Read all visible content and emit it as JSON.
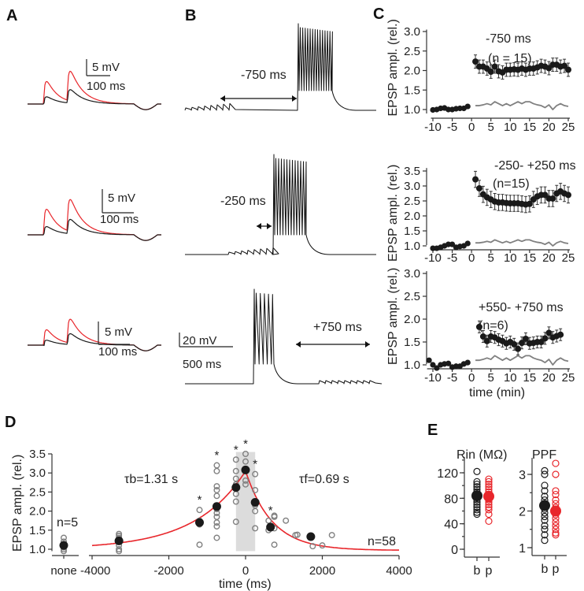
{
  "panel_labels": [
    "A",
    "B",
    "C",
    "D",
    "E"
  ],
  "colors": {
    "red": "#e8262b",
    "black": "#1a1a1a",
    "grey": "#808080",
    "shade": "#dcdcdc"
  },
  "panel_a": {
    "scale_mv": "5 mV",
    "scale_ms": "100 ms"
  },
  "panel_b": {
    "arrow_labels": [
      "-750 ms",
      "-250 ms",
      "+750 ms"
    ],
    "scale_mv": "20 mV",
    "scale_ms": "500 ms"
  },
  "chart_data": [
    {
      "type": "scatter",
      "panel": "C-top",
      "title": "-750 ms",
      "subtitle": "(n = 15)",
      "xlabel": "",
      "ylabel": "EPSP ampl. (rel.)",
      "xlim": [
        -10.5,
        25.5
      ],
      "ylim": [
        0.9,
        3.0
      ],
      "xticks": [
        "-10",
        "-5",
        "0",
        "5",
        "10",
        "15",
        "20",
        "25"
      ],
      "yticks": [
        "1.0",
        "1.5",
        "2.0",
        "2.5",
        "3.0"
      ],
      "pre": {
        "x": [
          -10,
          -9,
          -8,
          -7,
          -6,
          -5,
          -4,
          -3,
          -2,
          -1
        ],
        "y": [
          0.99,
          1.0,
          1.03,
          1.04,
          1.0,
          1.0,
          1.02,
          1.03,
          1.03,
          1.08
        ]
      },
      "post": {
        "x_start": 1,
        "y": [
          2.23,
          2.1,
          2.1,
          2.05,
          1.97,
          2.1,
          1.98,
          1.95,
          2.02,
          2.02,
          2.03,
          2.02,
          2.05,
          2.02,
          2.05,
          2.05,
          2.08,
          2.12,
          2.1,
          2.06,
          2.15,
          2.15,
          2.1,
          2.12,
          2.02
        ],
        "err": 0.17
      },
      "control": {
        "x_start": 1,
        "y": [
          1.1,
          1.1,
          1.12,
          1.15,
          1.12,
          1.2,
          1.15,
          1.1,
          1.15,
          1.1,
          1.15,
          1.2,
          1.15,
          1.2,
          1.2,
          1.15,
          1.12,
          1.1,
          1.05,
          1.12,
          1.0,
          1.1,
          1.15,
          1.1,
          1.08
        ]
      }
    },
    {
      "type": "scatter",
      "panel": "C-middle",
      "title": "-250- +250 ms",
      "subtitle": "(n=15)",
      "xlabel": "",
      "ylabel": "EPSP ampl. (rel.)",
      "xlim": [
        -10.5,
        25.5
      ],
      "ylim": [
        0.9,
        3.7
      ],
      "xticks": [
        "-10",
        "-5",
        "0",
        "5",
        "10",
        "15",
        "20",
        "25"
      ],
      "yticks": [
        "1.0",
        "1.5",
        "2.0",
        "2.5",
        "3.0",
        "3.5"
      ],
      "pre": {
        "x": [
          -10,
          -9,
          -8,
          -7,
          -6,
          -5,
          -4,
          -3,
          -2,
          -1
        ],
        "y": [
          0.92,
          0.92,
          0.95,
          1.0,
          1.05,
          1.05,
          0.95,
          0.98,
          1.0,
          1.08
        ]
      },
      "post": {
        "x_start": 1,
        "y": [
          3.22,
          2.92,
          2.72,
          2.62,
          2.55,
          2.48,
          2.45,
          2.45,
          2.43,
          2.42,
          2.42,
          2.42,
          2.4,
          2.38,
          2.4,
          2.55,
          2.65,
          2.7,
          2.7,
          2.58,
          2.58,
          2.75,
          2.82,
          2.75,
          2.7
        ],
        "err": 0.27
      },
      "control": {
        "x_start": 1,
        "y": [
          1.1,
          1.1,
          1.12,
          1.15,
          1.12,
          1.2,
          1.15,
          1.1,
          1.15,
          1.1,
          1.15,
          1.2,
          1.15,
          1.2,
          1.2,
          1.15,
          1.12,
          1.1,
          1.05,
          1.12,
          1.0,
          1.1,
          1.15,
          1.1,
          1.08
        ]
      }
    },
    {
      "type": "scatter",
      "panel": "C-bottom",
      "title": "+550- +750 ms",
      "subtitle": "(n=6)",
      "xlabel": "time (min)",
      "ylabel": "EPSP ampl. (rel.)",
      "xlim": [
        -11.5,
        25.5
      ],
      "ylim": [
        0.9,
        3.0
      ],
      "xticks": [
        "-10",
        "-5",
        "0",
        "5",
        "10",
        "15",
        "20",
        "25"
      ],
      "yticks": [
        "1.0",
        "1.5",
        "2.0",
        "2.5",
        "3.0"
      ],
      "pre": {
        "x": [
          -11,
          -10,
          -9,
          -8,
          -7,
          -6,
          -5,
          -4,
          -3,
          -2,
          -1
        ],
        "y": [
          1.1,
          1.0,
          0.93,
          1.0,
          1.02,
          1.03,
          0.95,
          0.97,
          0.97,
          1.02,
          1.05
        ]
      },
      "post": {
        "x_start": 2,
        "y": [
          1.83,
          1.62,
          1.52,
          1.62,
          1.6,
          1.55,
          1.52,
          1.47,
          1.5,
          1.45,
          1.35,
          1.48,
          1.57,
          1.47,
          1.48,
          1.5,
          1.5,
          1.58,
          1.7,
          1.6,
          1.63,
          1.66
        ],
        "err": 0.13
      },
      "control": {
        "x_start": 1,
        "y": [
          1.1,
          1.1,
          1.12,
          1.15,
          1.12,
          1.2,
          1.15,
          1.1,
          1.15,
          1.1,
          1.15,
          1.2,
          1.15,
          1.2,
          1.2,
          1.15,
          1.12,
          1.1,
          1.05,
          1.12,
          1.0,
          1.1,
          1.15,
          1.1,
          1.08
        ]
      }
    },
    {
      "type": "scatter",
      "panel": "D",
      "xlabel": "time (ms)",
      "ylabel": "EPSP ampl. (rel.)",
      "xlim": [
        -4000,
        4000
      ],
      "ylim": [
        0.95,
        3.5
      ],
      "xticks": [
        "-4000",
        "-2000",
        "0",
        "2000",
        "4000"
      ],
      "yticks": [
        "1.0",
        "1.5",
        "2.0",
        "2.5",
        "3.0",
        "3.5"
      ],
      "none_label": "none",
      "none_n": "n=5",
      "none_mean": 1.1,
      "none_points": [
        0.95,
        1.0,
        1.05,
        1.2,
        1.3
      ],
      "tau_b": "τb=1.31 s",
      "tau_f": "τf=0.69 s",
      "n_label": "n=58",
      "shaded_window": [
        -250,
        250
      ],
      "means": [
        [
          -3300,
          1.22
        ],
        [
          -1200,
          1.7
        ],
        [
          -750,
          2.12
        ],
        [
          -250,
          2.62
        ],
        [
          0,
          3.08
        ],
        [
          250,
          2.23
        ],
        [
          650,
          1.58
        ],
        [
          1700,
          1.33
        ]
      ],
      "significant": [
        -1200,
        -750,
        -250,
        0,
        250,
        650
      ],
      "points": [
        [
          -3300,
          0.95
        ],
        [
          -3300,
          1.0
        ],
        [
          -3300,
          1.1
        ],
        [
          -3300,
          1.2
        ],
        [
          -3300,
          1.3
        ],
        [
          -3300,
          1.35
        ],
        [
          -3300,
          1.4
        ],
        [
          -1200,
          1.12
        ],
        [
          -1200,
          1.65
        ],
        [
          -1200,
          1.75
        ],
        [
          -1200,
          2.03
        ],
        [
          -750,
          1.3
        ],
        [
          -750,
          1.6
        ],
        [
          -750,
          1.7
        ],
        [
          -750,
          1.85
        ],
        [
          -750,
          1.95
        ],
        [
          -750,
          2.05
        ],
        [
          -750,
          2.4
        ],
        [
          -750,
          2.55
        ],
        [
          -750,
          2.65
        ],
        [
          -750,
          3.05
        ],
        [
          -750,
          3.2
        ],
        [
          -250,
          1.72
        ],
        [
          -250,
          2.25
        ],
        [
          -250,
          2.45
        ],
        [
          -250,
          2.7
        ],
        [
          -250,
          2.85
        ],
        [
          -250,
          3.05
        ],
        [
          -250,
          3.35
        ],
        [
          0,
          2.7
        ],
        [
          0,
          2.8
        ],
        [
          0,
          3.1
        ],
        [
          0,
          3.3
        ],
        [
          0,
          3.5
        ],
        [
          250,
          1.55
        ],
        [
          250,
          2.0
        ],
        [
          250,
          2.15
        ],
        [
          250,
          2.55
        ],
        [
          250,
          2.97
        ],
        [
          600,
          1.5
        ],
        [
          600,
          1.75
        ],
        [
          750,
          1.12
        ],
        [
          750,
          1.55
        ],
        [
          750,
          1.85
        ],
        [
          750,
          1.88
        ],
        [
          1050,
          1.75
        ],
        [
          1300,
          1.37
        ],
        [
          1350,
          1.38
        ],
        [
          1750,
          1.08
        ],
        [
          2000,
          1.1
        ],
        [
          2250,
          1.37
        ]
      ],
      "fit": {
        "baseline_before": 1.0,
        "baseline_after": 0.97,
        "peak": 3.05,
        "tau_b_ms": 1310,
        "tau_f_ms": 690
      }
    },
    {
      "type": "scatter",
      "panel": "E-Rin",
      "title": "Rin (MΩ)",
      "title_main": "R",
      "title_sub": "in",
      "title_unit": "(MΩ)",
      "categories": [
        "b",
        "p"
      ],
      "ylim": [
        -5,
        145
      ],
      "yticks": [
        "0",
        "40",
        "80",
        "120"
      ],
      "means": [
        84,
        83
      ],
      "b_points": [
        55,
        58,
        62,
        66,
        70,
        74,
        78,
        82,
        86,
        90,
        94,
        98,
        102,
        106,
        122
      ],
      "p_points": [
        44,
        55,
        62,
        66,
        70,
        74,
        78,
        82,
        86,
        90,
        94,
        98,
        102,
        106,
        110
      ]
    },
    {
      "type": "scatter",
      "panel": "E-PPF",
      "title": "PPF",
      "categories": [
        "b",
        "p"
      ],
      "ylim": [
        0.95,
        3.45
      ],
      "yticks": [
        "1",
        "2",
        "3"
      ],
      "means": [
        2.15,
        2.0
      ],
      "b_points": [
        1.2,
        1.35,
        1.5,
        1.6,
        1.75,
        1.85,
        1.95,
        2.05,
        2.2,
        2.3,
        2.4,
        2.55,
        2.7,
        3.0,
        3.1
      ],
      "p_points": [
        1.35,
        1.4,
        1.5,
        1.6,
        1.7,
        1.8,
        1.9,
        2.0,
        2.1,
        2.2,
        2.3,
        2.45,
        2.55,
        3.0,
        3.3
      ]
    }
  ]
}
